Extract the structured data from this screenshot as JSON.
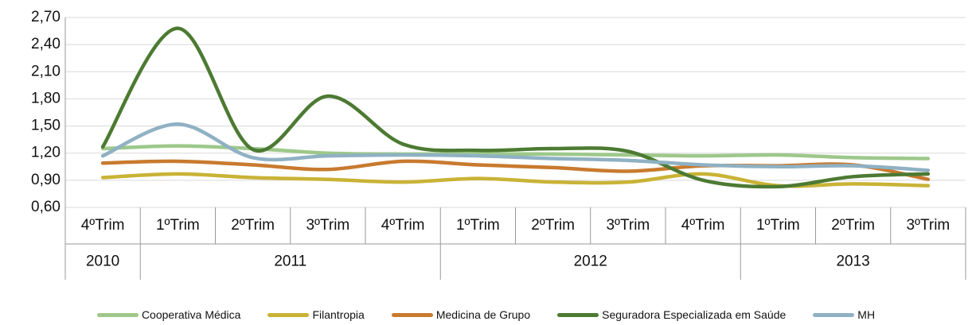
{
  "chart_data": {
    "type": "line",
    "categories": [
      "4ºTrim",
      "1ºTrim",
      "2ºTrim",
      "3ºTrim",
      "4ºTrim",
      "1ºTrim",
      "2ºTrim",
      "3ºTrim",
      "4ºTrim",
      "1ºTrim",
      "2ºTrim",
      "3ºTrim"
    ],
    "x_groups": [
      {
        "label": "2010",
        "count": 1
      },
      {
        "label": "2011",
        "count": 4
      },
      {
        "label": "2012",
        "count": 4
      },
      {
        "label": "2013",
        "count": 3
      }
    ],
    "ylim": [
      0.6,
      2.7
    ],
    "yticks": [
      {
        "value": 0.6,
        "label": "0,60"
      },
      {
        "value": 0.9,
        "label": "0,90"
      },
      {
        "value": 1.2,
        "label": "1,20"
      },
      {
        "value": 1.5,
        "label": "1,50"
      },
      {
        "value": 1.8,
        "label": "1,80"
      },
      {
        "value": 2.1,
        "label": "2,10"
      },
      {
        "value": 2.4,
        "label": "2,40"
      },
      {
        "value": 2.7,
        "label": "2,70"
      }
    ],
    "grid": true,
    "series": [
      {
        "name": "Cooperativa Médica",
        "color": "#9dc88a",
        "values": [
          1.25,
          1.28,
          1.25,
          1.2,
          1.19,
          1.19,
          1.19,
          1.18,
          1.17,
          1.18,
          1.15,
          1.14
        ]
      },
      {
        "name": "Filantropia",
        "color": "#c9b336",
        "values": [
          0.93,
          0.97,
          0.93,
          0.91,
          0.88,
          0.92,
          0.88,
          0.88,
          0.97,
          0.84,
          0.86,
          0.84
        ]
      },
      {
        "name": "Medicina de Grupo",
        "color": "#c87a2e",
        "values": [
          1.09,
          1.11,
          1.07,
          1.02,
          1.11,
          1.07,
          1.04,
          1.0,
          1.06,
          1.06,
          1.07,
          0.91
        ]
      },
      {
        "name": "Seguradora Especializada em Saúde",
        "color": "#4c7a32",
        "values": [
          1.27,
          2.58,
          1.24,
          1.83,
          1.3,
          1.23,
          1.25,
          1.22,
          0.9,
          0.83,
          0.94,
          0.97
        ]
      },
      {
        "name": "MH",
        "color": "#8fb1c3",
        "values": [
          1.17,
          1.52,
          1.15,
          1.17,
          1.18,
          1.17,
          1.14,
          1.12,
          1.07,
          1.05,
          1.06,
          1.01
        ]
      }
    ]
  }
}
